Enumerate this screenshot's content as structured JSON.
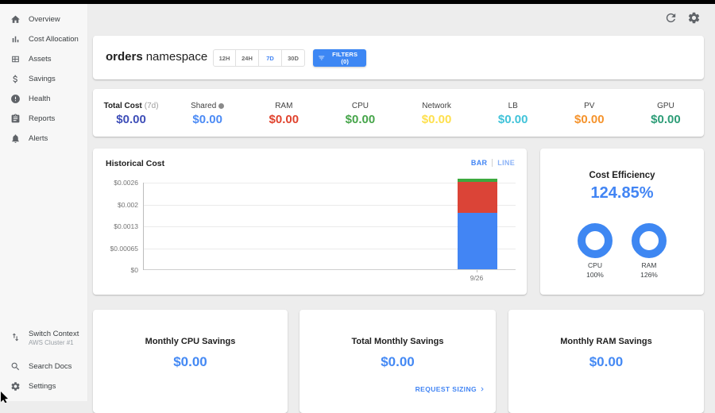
{
  "topbar": {
    "icons": [
      "refresh",
      "settings"
    ]
  },
  "sidebar": {
    "items": [
      {
        "label": "Overview",
        "icon": "home-icon"
      },
      {
        "label": "Cost Allocation",
        "icon": "bar-chart-icon"
      },
      {
        "label": "Assets",
        "icon": "grid-icon"
      },
      {
        "label": "Savings",
        "icon": "dollar-icon"
      },
      {
        "label": "Health",
        "icon": "alert-circle-icon"
      },
      {
        "label": "Reports",
        "icon": "clipboard-icon"
      },
      {
        "label": "Alerts",
        "icon": "bell-icon"
      }
    ],
    "footer": {
      "switch_context": {
        "label": "Switch Context",
        "sublabel": "AWS Cluster #1",
        "icon": "swap-vertical-icon"
      },
      "search_docs": {
        "label": "Search Docs",
        "icon": "search-icon"
      },
      "settings": {
        "label": "Settings",
        "icon": "gear-icon"
      }
    }
  },
  "header": {
    "title_bold": "orders",
    "title_regular": "namespace",
    "time_ranges": [
      "12H",
      "24H",
      "7D",
      "30D"
    ],
    "selected_range": "7D",
    "filters_label": "FILTERS (0)"
  },
  "metrics": [
    {
      "label": "Total Cost",
      "suffix": "(7d)",
      "value": "$0.00",
      "color": "#3e4eb8"
    },
    {
      "label": "Shared",
      "value": "$0.00",
      "color": "#4c8bf5"
    },
    {
      "label": "RAM",
      "value": "$0.00",
      "color": "#e0432e"
    },
    {
      "label": "CPU",
      "value": "$0.00",
      "color": "#46a54a"
    },
    {
      "label": "Network",
      "value": "$0.00",
      "color": "#fee04e"
    },
    {
      "label": "LB",
      "value": "$0.00",
      "color": "#41c3d9"
    },
    {
      "label": "PV",
      "value": "$0.00",
      "color": "#f5932c"
    },
    {
      "label": "GPU",
      "value": "$0.00",
      "color": "#2d9d77"
    }
  ],
  "historical_cost": {
    "title": "Historical Cost",
    "toggle_bar": "BAR",
    "toggle_line": "LINE"
  },
  "chart_data": {
    "type": "bar",
    "stacked": true,
    "title": "Historical Cost",
    "x": [
      "9/26"
    ],
    "series": [
      {
        "name": "blue",
        "color": "#4285f4",
        "values": [
          0.00169
        ]
      },
      {
        "name": "red",
        "color": "#db4437",
        "values": [
          0.00092
        ]
      },
      {
        "name": "green",
        "color": "#3da93f",
        "values": [
          8e-05
        ]
      }
    ],
    "ylim": [
      0,
      0.0026
    ],
    "yticks": [
      "$0",
      "$0.00065",
      "$0.0013",
      "$0.002",
      "$0.0026"
    ],
    "xlabel": "",
    "ylabel": "",
    "grid": true,
    "legend": false
  },
  "efficiency": {
    "title": "Cost Efficiency",
    "value": "124.85%",
    "donuts": [
      {
        "label": "CPU",
        "value": "100%"
      },
      {
        "label": "RAM",
        "value": "126%"
      }
    ]
  },
  "savings_cards": [
    {
      "title": "Monthly CPU Savings",
      "value": "$0.00"
    },
    {
      "title": "Total Monthly Savings",
      "value": "$0.00",
      "link": "REQUEST SIZING"
    },
    {
      "title": "Monthly RAM Savings",
      "value": "$0.00"
    }
  ]
}
